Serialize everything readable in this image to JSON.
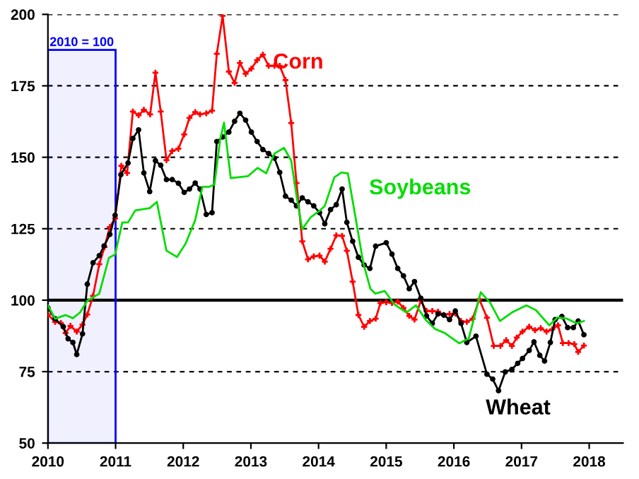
{
  "chart_data": {
    "type": "line",
    "xlim": [
      2010,
      2018.5
    ],
    "xticks": [
      2010,
      2011,
      2012,
      2013,
      2014,
      2015,
      2016,
      2017,
      2018
    ],
    "ylim": [
      50,
      200
    ],
    "yticks": [
      50,
      75,
      100,
      125,
      150,
      175,
      200
    ],
    "grid": "y",
    "ref_lines": [
      {
        "axis": "y",
        "value": 100,
        "color": "#000000",
        "line_style": "solid"
      }
    ],
    "bands": [
      {
        "axis": "x",
        "from": 2010,
        "to": 2011,
        "label": "2010 = 100",
        "color": "#0000ff"
      }
    ],
    "series": [
      {
        "name": "Corn",
        "color": "#ff0000",
        "marker": "cross",
        "x": [
          2010.0,
          2010.106,
          2010.191,
          2010.262,
          2010.333,
          2010.426,
          2010.511,
          2010.582,
          2010.667,
          2010.759,
          2010.837,
          2010.915,
          2010.993,
          2011.085,
          2011.17,
          2011.255,
          2011.34,
          2011.418,
          2011.511,
          2011.589,
          2011.667,
          2011.752,
          2011.837,
          2011.929,
          2012.014,
          2012.092,
          2012.177,
          2012.248,
          2012.34,
          2012.426,
          2012.496,
          2012.582,
          2012.674,
          2012.759,
          2012.837,
          2012.922,
          2013.007,
          2013.092,
          2013.177,
          2013.262,
          2013.348,
          2013.426,
          2013.511,
          2013.596,
          2013.674,
          2013.759,
          2013.844,
          2013.929,
          2014.014,
          2014.092,
          2014.177,
          2014.262,
          2014.348,
          2014.418,
          2014.504,
          2014.589,
          2014.674,
          2014.759,
          2014.844,
          2014.915,
          2015.0,
          2015.085,
          2015.17,
          2015.255,
          2015.34,
          2015.418,
          2015.511,
          2015.596,
          2015.681,
          2015.766,
          2015.851,
          2015.936,
          2016.021,
          2016.106,
          2016.191,
          2016.277,
          2016.376,
          2016.489,
          2016.589,
          2016.688,
          2016.773,
          2016.858,
          2016.929,
          2017.014,
          2017.113,
          2017.199,
          2017.284,
          2017.369,
          2017.454,
          2017.539,
          2017.61,
          2017.695,
          2017.78,
          2017.837,
          2017.922
        ],
        "values": [
          95,
          92.4,
          92,
          88.5,
          91,
          89,
          91.5,
          95,
          101.5,
          112.6,
          118.6,
          125.6,
          128.6,
          147,
          144.5,
          166,
          164.7,
          166.6,
          165,
          179.6,
          166,
          149,
          152.2,
          153,
          158,
          163.8,
          165.8,
          165,
          165.4,
          166.3,
          186.2,
          199.5,
          180,
          176,
          183,
          179.2,
          181,
          184,
          185.9,
          182,
          182,
          182,
          177,
          162,
          141,
          120.6,
          114.3,
          115.3,
          115.6,
          113.5,
          118,
          122.7,
          122.5,
          117.3,
          106.5,
          94.8,
          90.7,
          92.7,
          93.5,
          99,
          99.3,
          99,
          99.5,
          97.3,
          94.5,
          93.2,
          99.8,
          96.2,
          96.2,
          96,
          94.8,
          95.2,
          95.3,
          92.7,
          92.4,
          93.5,
          100.3,
          93.9,
          84,
          84,
          86,
          84,
          86.9,
          89,
          90.7,
          89.5,
          90.2,
          89,
          89.8,
          91.2,
          85,
          85,
          84.6,
          81.9,
          84.1
        ]
      },
      {
        "name": "Wheat",
        "color": "#000000",
        "marker": "circle",
        "x": [
          2010.0,
          2010.106,
          2010.227,
          2010.298,
          2010.369,
          2010.426,
          2010.511,
          2010.582,
          2010.667,
          2010.759,
          2010.83,
          2010.915,
          2010.993,
          2011.078,
          2011.184,
          2011.255,
          2011.34,
          2011.418,
          2011.504,
          2011.589,
          2011.667,
          2011.752,
          2011.837,
          2011.929,
          2012.014,
          2012.092,
          2012.177,
          2012.248,
          2012.34,
          2012.426,
          2012.496,
          2012.582,
          2012.674,
          2012.759,
          2012.837,
          2012.922,
          2013.007,
          2013.092,
          2013.177,
          2013.262,
          2013.348,
          2013.426,
          2013.511,
          2013.596,
          2013.674,
          2013.759,
          2013.844,
          2013.929,
          2014.014,
          2014.092,
          2014.177,
          2014.262,
          2014.348,
          2014.418,
          2014.504,
          2014.589,
          2014.674,
          2014.759,
          2014.844,
          2015.0,
          2015.085,
          2015.17,
          2015.255,
          2015.34,
          2015.418,
          2015.511,
          2015.596,
          2015.681,
          2015.766,
          2015.851,
          2015.936,
          2016.021,
          2016.106,
          2016.191,
          2016.326,
          2016.489,
          2016.574,
          2016.66,
          2016.759,
          2016.858,
          2016.943,
          2017.014,
          2017.113,
          2017.184,
          2017.27,
          2017.34,
          2017.426,
          2017.496,
          2017.596,
          2017.681,
          2017.766,
          2017.837,
          2017.922
        ],
        "values": [
          97.3,
          93.5,
          90.7,
          86.5,
          85.2,
          81,
          88.2,
          105.6,
          113.1,
          115.6,
          119,
          123,
          129.7,
          143.9,
          148,
          156.6,
          159.6,
          144.5,
          138,
          148.8,
          147.2,
          142.2,
          142.2,
          140.9,
          137.7,
          138.9,
          141,
          138.9,
          130,
          130.6,
          155.5,
          157.1,
          158.8,
          162.6,
          165.4,
          163,
          158.8,
          155.5,
          152.7,
          151.3,
          149.7,
          144.7,
          136.4,
          135,
          133,
          135.8,
          134.4,
          133,
          130.6,
          126.7,
          131.7,
          133.4,
          138.9,
          127.2,
          120.6,
          115,
          112.3,
          111.1,
          118.9,
          120.1,
          116.1,
          111.1,
          108.5,
          104,
          106.5,
          100.7,
          94.5,
          91.9,
          95.2,
          94.8,
          93.2,
          96.2,
          91.9,
          85.2,
          87.4,
          74.1,
          72.4,
          68.3,
          74.9,
          75.8,
          77.9,
          79.6,
          82.4,
          85.4,
          80.7,
          78.7,
          85.2,
          93.2,
          94.3,
          90.4,
          90.4,
          92.7,
          87.9
        ]
      },
      {
        "name": "Soybeans",
        "color": "#00dd00",
        "marker": "none",
        "x": [
          2010.0,
          2010.106,
          2010.262,
          2010.369,
          2010.475,
          2010.582,
          2010.759,
          2010.901,
          2010.993,
          2011.099,
          2011.184,
          2011.291,
          2011.504,
          2011.61,
          2011.752,
          2011.908,
          2012.035,
          2012.177,
          2012.284,
          2012.39,
          2012.461,
          2012.546,
          2012.603,
          2012.702,
          2012.816,
          2012.957,
          2013.099,
          2013.227,
          2013.348,
          2013.489,
          2013.596,
          2013.681,
          2013.759,
          2013.879,
          2014.021,
          2014.092,
          2014.234,
          2014.34,
          2014.433,
          2014.553,
          2014.66,
          2014.766,
          2014.837,
          2014.979,
          2015.121,
          2015.298,
          2015.44,
          2015.582,
          2015.723,
          2015.865,
          2016.078,
          2016.22,
          2016.397,
          2016.539,
          2016.681,
          2016.858,
          2017.071,
          2017.213,
          2017.411,
          2017.532,
          2017.674,
          2017.816,
          2017.922
        ],
        "values": [
          98.2,
          93.5,
          94.8,
          93.7,
          95.7,
          99.8,
          102.3,
          114.8,
          116,
          127.2,
          127.2,
          131.4,
          132.2,
          134.4,
          117.3,
          115.1,
          119.8,
          128,
          139.7,
          139.7,
          140.5,
          156.3,
          162.1,
          142.7,
          143,
          143.4,
          146.3,
          144.4,
          151.3,
          153.3,
          148.8,
          135.5,
          124.8,
          128.9,
          131.4,
          133,
          143,
          144.7,
          144.4,
          128,
          113.1,
          104,
          102.3,
          103.2,
          98.5,
          95.7,
          98.2,
          93.2,
          89.9,
          88.5,
          84.9,
          86.6,
          102.8,
          99,
          92.7,
          95.7,
          98.2,
          96.5,
          91.2,
          94,
          93.5,
          91.9,
          92.7
        ]
      }
    ]
  }
}
